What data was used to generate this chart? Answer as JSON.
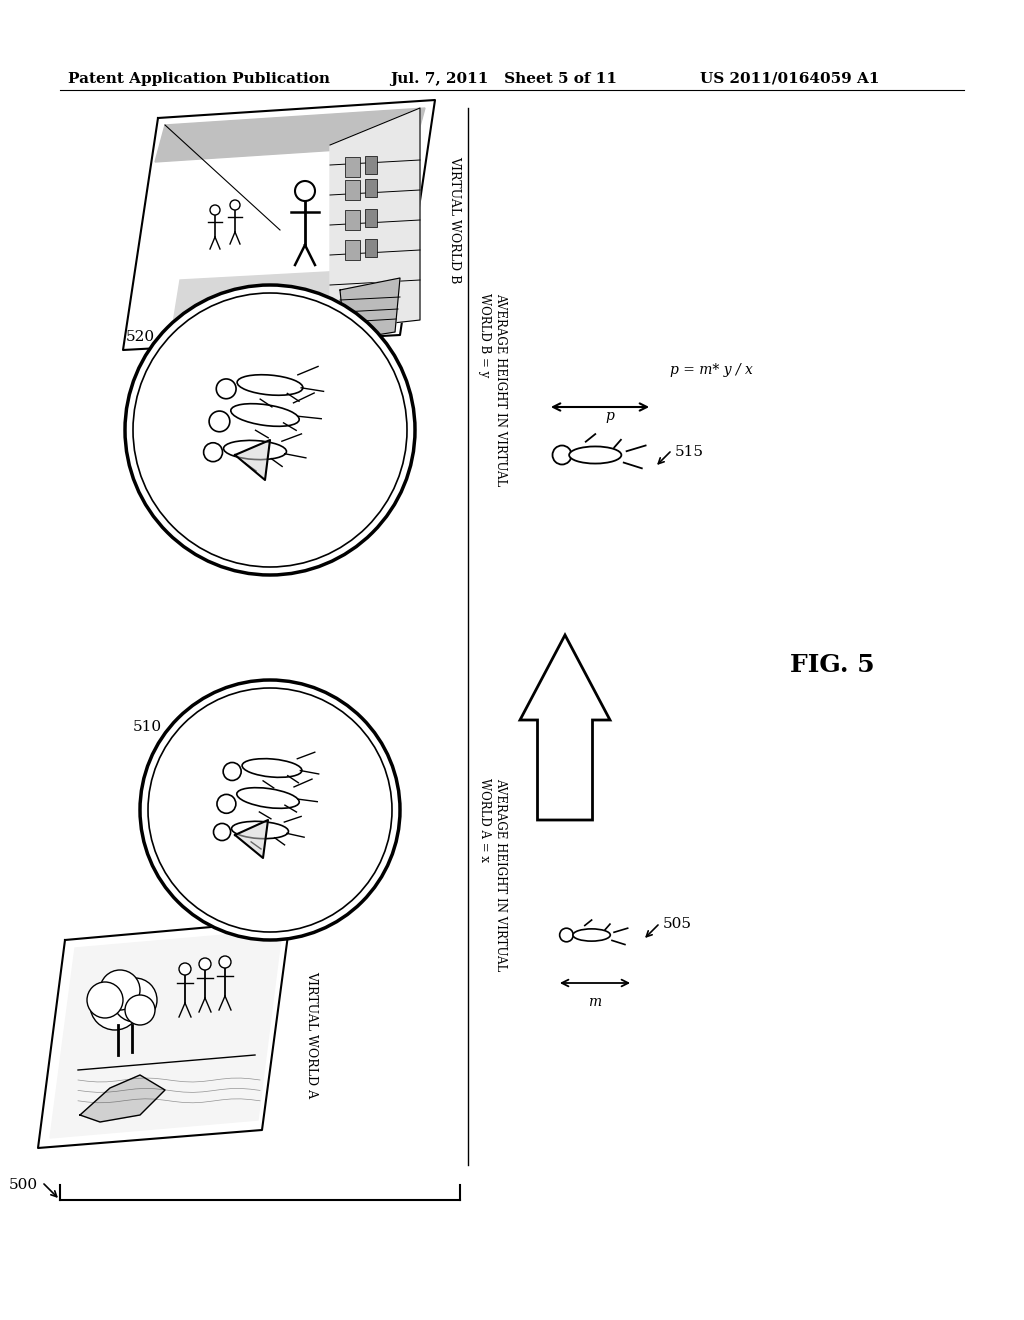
{
  "background_color": "#ffffff",
  "header_left": "Patent Application Publication",
  "header_center": "Jul. 7, 2011   Sheet 5 of 11",
  "header_right": "US 2011/0164059 A1",
  "fig_label": "FIG. 5",
  "label_500": "500",
  "label_505": "505",
  "label_510": "510",
  "label_515": "515",
  "label_520": "520",
  "virtual_world_a_label": "VIRTUAL WORLD A",
  "virtual_world_b_label": "VIRTUAL WORLD B",
  "avg_height_a": "AVERAGE HEIGHT IN VIRTUAL\nWORLD A = x",
  "avg_height_b": "AVERAGE HEIGHT IN VIRTUAL\nWORLD B = y",
  "formula": "p = m* y / x",
  "m_label": "m",
  "p_label": "p"
}
